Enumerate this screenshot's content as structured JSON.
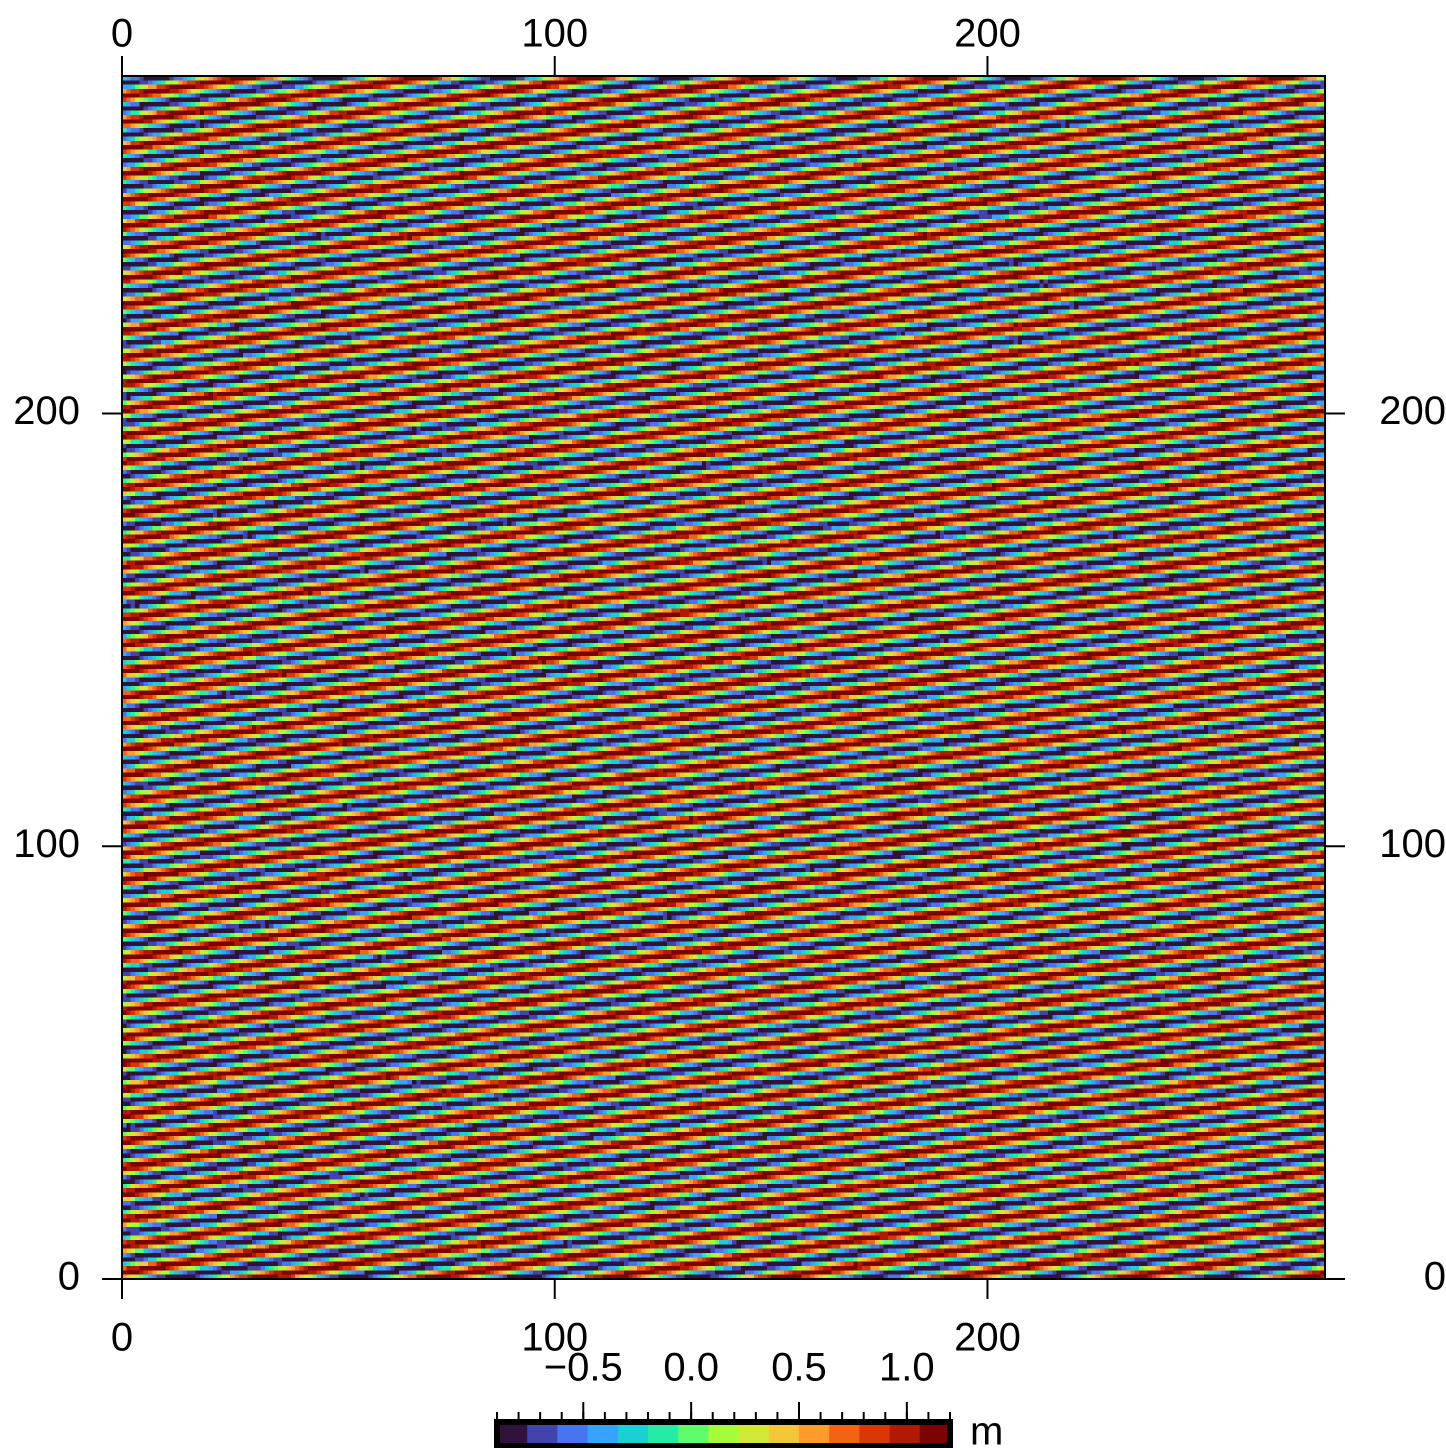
{
  "chart_data": {
    "type": "heatmap",
    "title": "",
    "xlabel": "",
    "ylabel": "",
    "xlim": [
      0,
      278
    ],
    "ylim": [
      0,
      278
    ],
    "x_ticks": [
      0,
      100,
      200
    ],
    "y_ticks": [
      0,
      100,
      200
    ],
    "x_tick_labels": [
      "0",
      "100",
      "200"
    ],
    "y_tick_labels": [
      "0",
      "100",
      "200"
    ],
    "field": {
      "description_values": "sinusoidal wave pattern",
      "wavelength_along_y": 6.04,
      "rise_over_x_range": 42,
      "amplitude_min": -0.9,
      "amplitude_max": 1.2,
      "noise": 0.06
    },
    "colorbar": {
      "unit": "m",
      "range": [
        -0.9,
        1.2
      ],
      "tick_values": [
        -0.5,
        0.0,
        0.5,
        1.0
      ],
      "tick_labels": [
        "−0.5",
        "0.0",
        "0.5",
        "1.0"
      ],
      "minor_tick_step": 0.1,
      "colors": [
        "#30123b",
        "#4145ab",
        "#4675ed",
        "#39a2fc",
        "#1bcfd4",
        "#24eca6",
        "#61fc6c",
        "#a4fc3b",
        "#d1e834",
        "#f3c63a",
        "#fe9b2d",
        "#f36315",
        "#d93806",
        "#b11901",
        "#7a0402"
      ]
    }
  }
}
